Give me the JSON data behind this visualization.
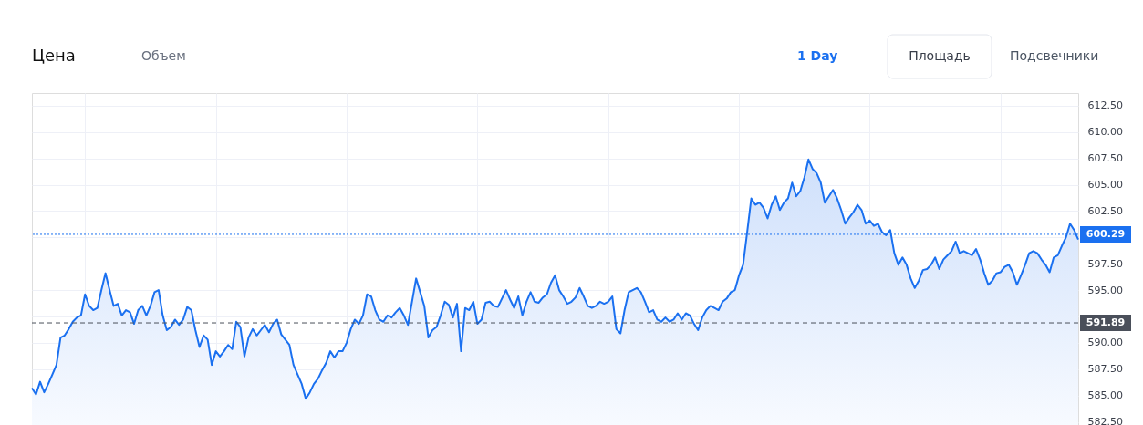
{
  "chart_data": {
    "type": "area",
    "categories": [
      null,
      null,
      null,
      null,
      null,
      null,
      null,
      null,
      null,
      null,
      null,
      null,
      null,
      null,
      null,
      null,
      null,
      null,
      null,
      null,
      null,
      null,
      null,
      null,
      null,
      null,
      null,
      null,
      null,
      null,
      null,
      null,
      null,
      null,
      null,
      null,
      null,
      null,
      null,
      null,
      null,
      null,
      null,
      null,
      null,
      null,
      null,
      null,
      null,
      null,
      null,
      null,
      null,
      null,
      null,
      null,
      null,
      null,
      null,
      null,
      null,
      null,
      null,
      null,
      null,
      null,
      null,
      null,
      null,
      null,
      null,
      null,
      null,
      null,
      null,
      null,
      null,
      null,
      null,
      null,
      null,
      null,
      null,
      null,
      null,
      null,
      null,
      null,
      null,
      null,
      null,
      null,
      null,
      null,
      null,
      null,
      null,
      null,
      null,
      null,
      null,
      null,
      null,
      null,
      null,
      null,
      null,
      null,
      null,
      null,
      null,
      null,
      null,
      null,
      null,
      null,
      null,
      null,
      null,
      null,
      null,
      null,
      null,
      null,
      null,
      null,
      null,
      null,
      null,
      null,
      null,
      null,
      null,
      null,
      null,
      null,
      null,
      null,
      null,
      null,
      null,
      null,
      null,
      null,
      null,
      null,
      null,
      null,
      null,
      null,
      null,
      null,
      null,
      null,
      null,
      null,
      null,
      null,
      null,
      null,
      null,
      null,
      null,
      null,
      null,
      null,
      null,
      null,
      null,
      null,
      null,
      null,
      null,
      null,
      null,
      null,
      null,
      null,
      null,
      null,
      null,
      null,
      null,
      null,
      null,
      null,
      null,
      null,
      null,
      null,
      null,
      null,
      null,
      null,
      null,
      null,
      null,
      null,
      null,
      null,
      null,
      null,
      null,
      null,
      null,
      null,
      null,
      null,
      null,
      null,
      null,
      null,
      null,
      null,
      null,
      null,
      null,
      null,
      null,
      null,
      null,
      null,
      null,
      null,
      null,
      null,
      null,
      null,
      null,
      null,
      null,
      null,
      null,
      null,
      null,
      null,
      null,
      null,
      null,
      null,
      null,
      null,
      null,
      null,
      null,
      null,
      null,
      null,
      null,
      null,
      null,
      null,
      null,
      null,
      null,
      null,
      null
    ],
    "series": [
      {
        "color": "#1a70f0",
        "values": [
          585.7,
          585.1,
          586.3,
          585.3,
          586.1,
          587.0,
          587.9,
          590.5,
          590.7,
          591.3,
          592.0,
          592.4,
          592.6,
          594.6,
          593.5,
          593.1,
          593.3,
          595.0,
          596.6,
          595.0,
          593.5,
          593.7,
          592.6,
          593.1,
          592.9,
          591.8,
          593.1,
          593.5,
          592.6,
          593.5,
          594.8,
          595.0,
          592.6,
          591.2,
          591.5,
          592.2,
          591.7,
          592.2,
          593.4,
          593.1,
          591.2,
          589.6,
          590.7,
          590.3,
          587.9,
          589.2,
          588.7,
          589.2,
          589.8,
          589.4,
          592.0,
          591.5,
          588.7,
          590.5,
          591.3,
          590.7,
          591.2,
          591.7,
          591.0,
          591.8,
          592.2,
          590.8,
          590.3,
          589.8,
          587.9,
          587.0,
          586.1,
          584.7,
          585.3,
          586.1,
          586.6,
          587.4,
          588.1,
          589.2,
          588.6,
          589.2,
          589.2,
          590.0,
          591.3,
          592.2,
          591.8,
          592.6,
          594.6,
          594.4,
          593.1,
          592.2,
          592.0,
          592.6,
          592.4,
          592.9,
          593.3,
          592.6,
          591.7,
          593.9,
          596.1,
          594.8,
          593.5,
          590.5,
          591.2,
          591.5,
          592.6,
          593.9,
          593.6,
          592.4,
          593.7,
          589.2,
          593.3,
          593.1,
          593.9,
          591.8,
          592.2,
          593.8,
          593.9,
          593.5,
          593.4,
          594.2,
          595.0,
          594.1,
          593.3,
          594.4,
          592.6,
          593.9,
          594.8,
          593.9,
          593.8,
          594.3,
          594.6,
          595.7,
          596.4,
          595.0,
          594.4,
          593.7,
          593.9,
          594.3,
          595.2,
          594.4,
          593.5,
          593.3,
          593.5,
          593.9,
          593.7,
          593.9,
          594.4,
          591.3,
          590.9,
          593.1,
          594.8,
          595.0,
          595.2,
          594.8,
          593.9,
          592.9,
          593.1,
          592.2,
          592.0,
          592.4,
          592.0,
          592.2,
          592.8,
          592.2,
          592.8,
          592.6,
          591.8,
          591.2,
          592.4,
          593.1,
          593.5,
          593.3,
          593.1,
          593.9,
          594.2,
          594.8,
          595.0,
          596.4,
          597.4,
          600.5,
          603.7,
          603.1,
          603.3,
          602.8,
          601.8,
          603.1,
          603.9,
          602.6,
          603.3,
          603.7,
          605.2,
          603.9,
          604.4,
          605.7,
          607.4,
          606.5,
          606.1,
          605.2,
          603.3,
          603.9,
          604.5,
          603.7,
          602.6,
          601.3,
          601.9,
          602.4,
          603.1,
          602.6,
          601.3,
          601.6,
          601.1,
          601.3,
          600.5,
          600.2,
          600.7,
          598.5,
          597.4,
          598.1,
          597.4,
          596.1,
          595.2,
          595.9,
          596.9,
          597.0,
          597.4,
          598.1,
          597.0,
          597.9,
          598.3,
          598.7,
          599.6,
          598.5,
          598.7,
          598.5,
          598.3,
          598.9,
          597.9,
          596.6,
          595.5,
          595.9,
          596.6,
          596.7,
          597.2,
          597.4,
          596.7,
          595.5,
          596.4,
          597.4,
          598.5,
          598.7,
          598.5,
          597.9,
          597.4,
          596.7,
          598.1,
          598.3,
          599.2,
          600.0,
          601.3,
          600.7,
          599.8
        ]
      }
    ],
    "ylim": [
      582.2,
      613.7
    ],
    "yticks": [
      {
        "value": 582.5,
        "label": "582.50"
      },
      {
        "value": 585,
        "label": "585.00"
      },
      {
        "value": 587.5,
        "label": "587.50"
      },
      {
        "value": 590,
        "label": "590.00"
      },
      {
        "value": 592.5,
        "label": null
      },
      {
        "value": 595,
        "label": "595.00"
      },
      {
        "value": 597.5,
        "label": "597.50"
      },
      {
        "value": 600,
        "label": null
      },
      {
        "value": 602.5,
        "label": "602.50"
      },
      {
        "value": 605,
        "label": "605.00"
      },
      {
        "value": 607.5,
        "label": "607.50"
      },
      {
        "value": 610,
        "label": "610.00"
      },
      {
        "value": 612.5,
        "label": "612.50"
      }
    ],
    "ref_lines": [
      {
        "axis": "y",
        "value": 600.29,
        "label": "600.29",
        "color": "#1a70f0",
        "line_style": "dotted"
      },
      {
        "axis": "y",
        "value": 591.89,
        "label": "591.89",
        "color": "#4a4f5a",
        "line_style": "dashed"
      }
    ],
    "annotations": [
      "Цена",
      "Объем",
      "1 Day",
      "Площадь",
      "Подсвечники"
    ],
    "grid": true,
    "legend": false,
    "marker": "none",
    "line_style": "solid"
  }
}
